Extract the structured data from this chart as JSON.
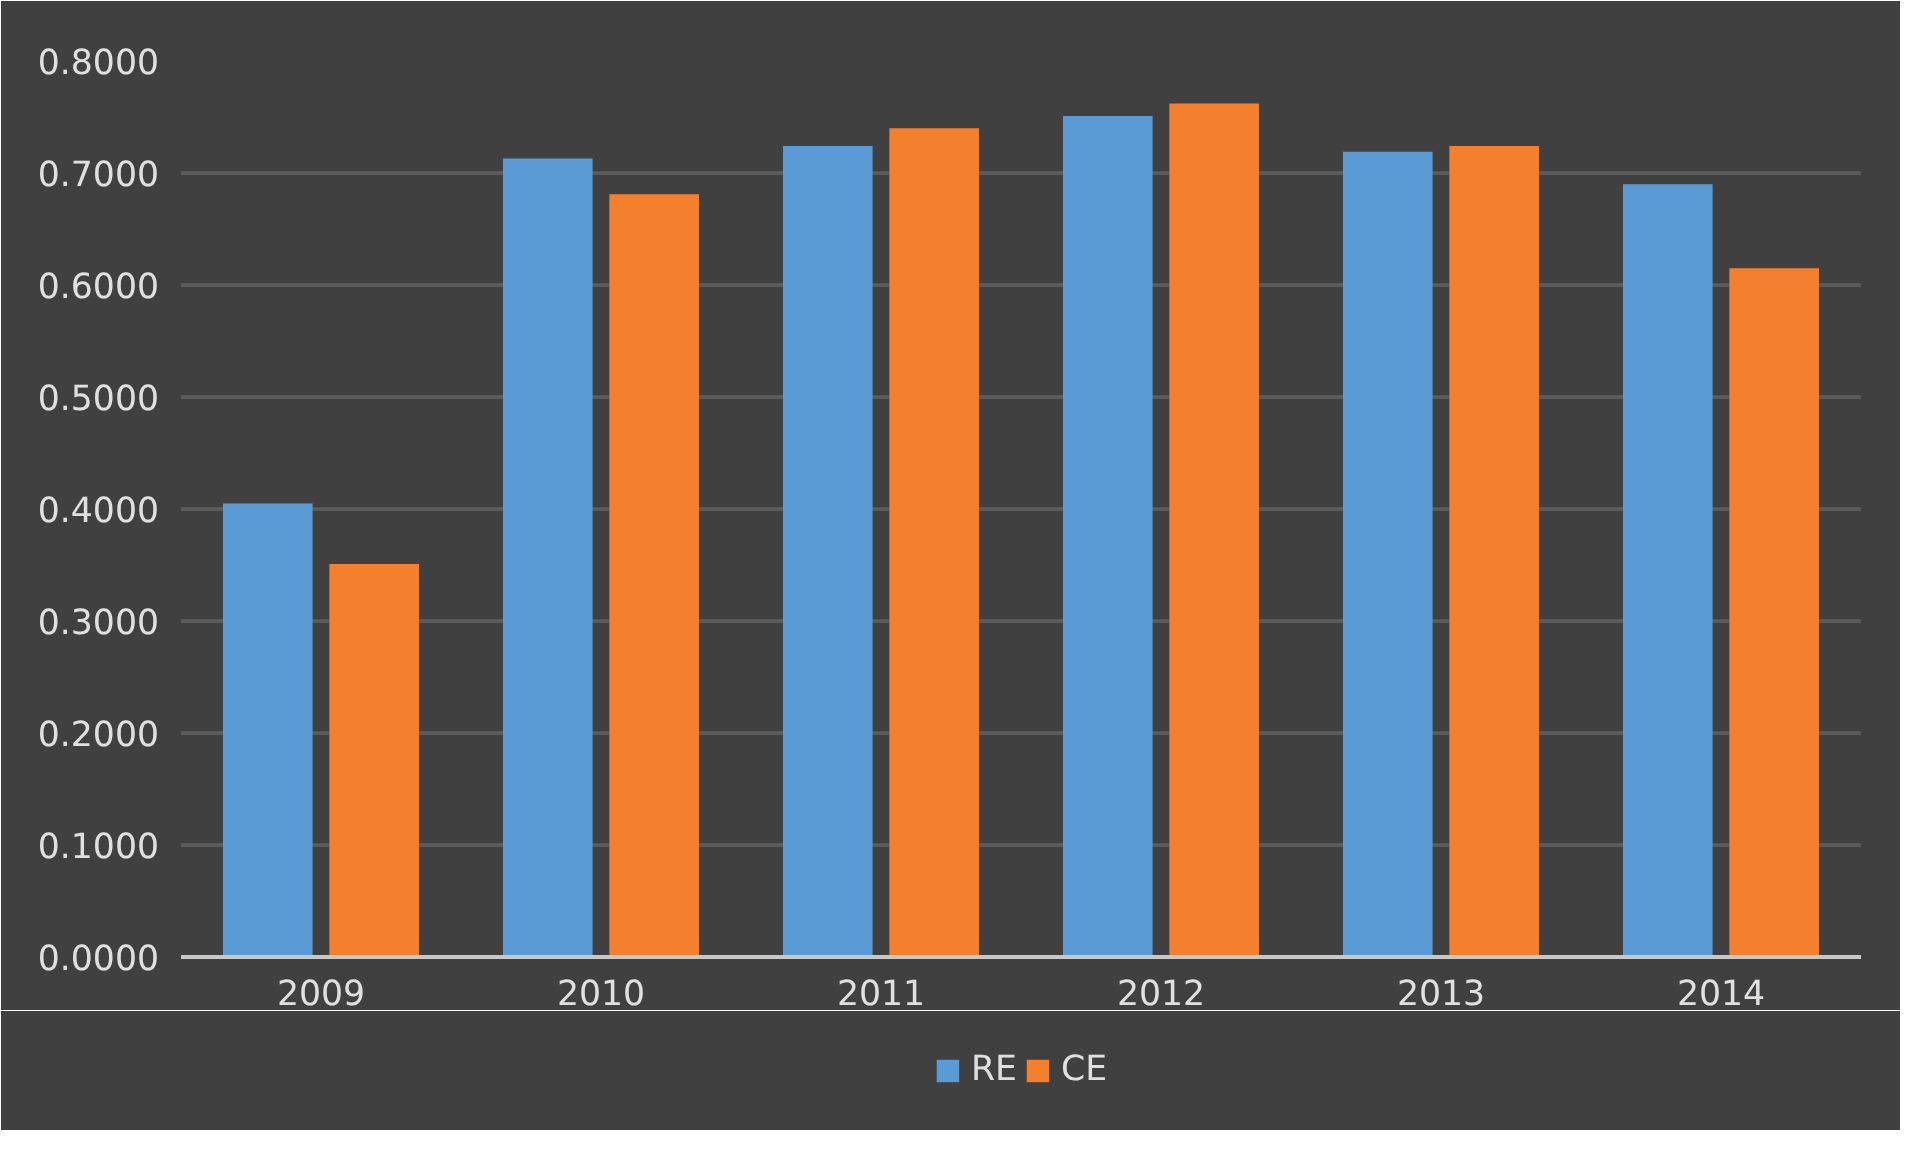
{
  "chart_data": {
    "type": "bar",
    "categories": [
      "2009",
      "2010",
      "2011",
      "2012",
      "2013",
      "2014"
    ],
    "series": [
      {
        "name": "RE",
        "color": "#5b9bd5",
        "values": [
          0.405,
          0.713,
          0.724,
          0.751,
          0.719,
          0.69
        ]
      },
      {
        "name": "CE",
        "color": "#f4802e",
        "values": [
          0.351,
          0.681,
          0.74,
          0.762,
          0.724,
          0.615
        ]
      }
    ],
    "ylim": [
      0,
      0.8
    ],
    "yticks": [
      {
        "value": 0,
        "label": "0.0000"
      },
      {
        "value": 0.1,
        "label": "0.1000"
      },
      {
        "value": 0.2,
        "label": "0.2000"
      },
      {
        "value": 0.3,
        "label": "0.3000"
      },
      {
        "value": 0.4,
        "label": "0.4000"
      },
      {
        "value": 0.5,
        "label": "0.5000"
      },
      {
        "value": 0.6,
        "label": "0.6000"
      },
      {
        "value": 0.7,
        "label": "0.7000"
      },
      {
        "value": 0.8,
        "label": "0.8000"
      }
    ],
    "grid": "y",
    "legend": "bottom"
  }
}
